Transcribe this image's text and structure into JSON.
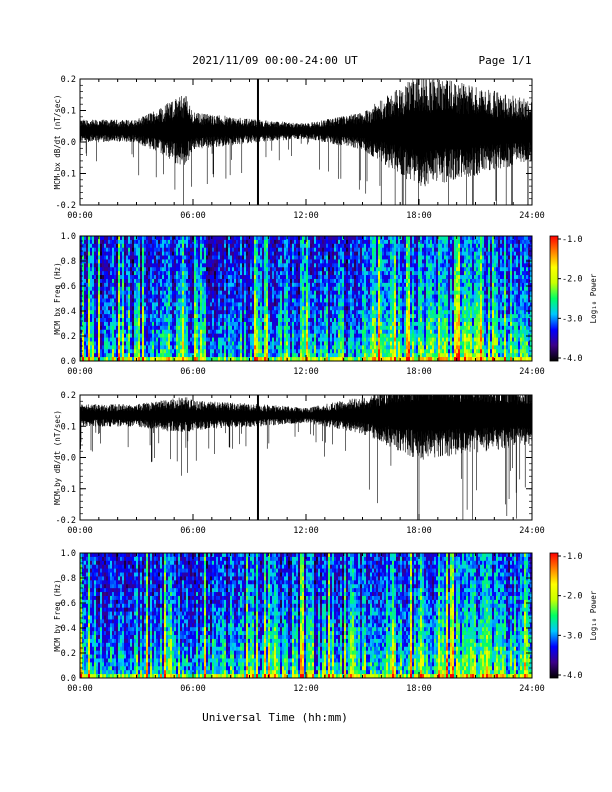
{
  "header": {
    "date_range": "2021/11/09  00:00-24:00 UT",
    "page": "Page 1/1"
  },
  "xaxis_title": "Universal Time (hh:mm)",
  "colorbar": {
    "label": "Log₁₀ Power",
    "ticks": [
      "-1.0",
      "-2.0",
      "-3.0",
      "-4.0"
    ],
    "colors": [
      "#000000",
      "#3b0088",
      "#0000ff",
      "#00c8ff",
      "#00ff64",
      "#c8ff00",
      "#ffff00",
      "#ff8000",
      "#ff0000"
    ]
  },
  "chart_data": [
    {
      "type": "line",
      "ylabel": "MCM bx dB/dt (nT/sec)",
      "xlim": [
        0,
        24
      ],
      "ylim": [
        -0.2,
        0.2
      ],
      "xticks": [
        "00:00",
        "06:00",
        "12:00",
        "18:00",
        "24:00"
      ],
      "yticks": [
        "0.2",
        "0.1",
        "0.0",
        "-0.1",
        "-0.2"
      ],
      "baseline": 0.035,
      "description_points": {
        "x": [
          0,
          3,
          5.6,
          6,
          9.5,
          12,
          15,
          18,
          21,
          24
        ],
        "envelope": [
          0.03,
          0.03,
          0.1,
          0.05,
          0.03,
          0.02,
          0.05,
          0.15,
          0.12,
          0.08
        ]
      },
      "spike_hours": [
        9.45
      ]
    },
    {
      "type": "heatmap",
      "ylabel": "MCM bx Freq (Hz)",
      "xlim": [
        0,
        24
      ],
      "ylim": [
        0,
        1.0
      ],
      "xticks": [
        "00:00",
        "06:00",
        "12:00",
        "18:00",
        "24:00"
      ],
      "yticks": [
        "1.0",
        "0.8",
        "0.6",
        "0.4",
        "0.2",
        "0.0"
      ],
      "zlim": [
        -4.0,
        -1.0
      ]
    },
    {
      "type": "line",
      "ylabel": "MCM by dB/dt (nT/sec)",
      "xlim": [
        0,
        24
      ],
      "ylim": [
        -0.2,
        0.2
      ],
      "xticks": [
        "00:00",
        "06:00",
        "12:00",
        "18:00",
        "24:00"
      ],
      "yticks": [
        "0.2",
        "0.1",
        "0.0",
        "-0.1",
        "-0.2"
      ],
      "baseline": 0.135,
      "description_points": {
        "x": [
          0,
          3,
          5.6,
          6,
          9.5,
          12,
          15,
          18,
          21,
          24
        ],
        "envelope": [
          0.03,
          0.03,
          0.05,
          0.04,
          0.03,
          0.02,
          0.05,
          0.12,
          0.1,
          0.08
        ]
      },
      "spike_hours": [
        9.45
      ]
    },
    {
      "type": "heatmap",
      "ylabel": "MCM by Freq (Hz)",
      "xlim": [
        0,
        24
      ],
      "ylim": [
        0,
        1.0
      ],
      "xticks": [
        "00:00",
        "06:00",
        "12:00",
        "18:00",
        "24:00"
      ],
      "yticks": [
        "1.0",
        "0.8",
        "0.6",
        "0.4",
        "0.2",
        "0.0"
      ],
      "zlim": [
        -4.0,
        -1.0
      ]
    }
  ]
}
